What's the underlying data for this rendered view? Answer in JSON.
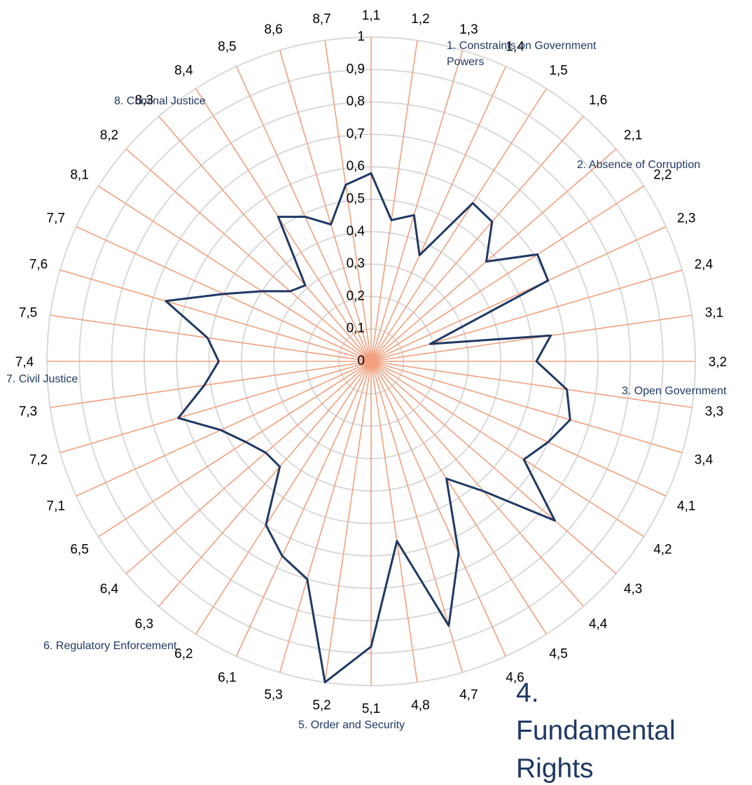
{
  "chart_data": {
    "type": "radar",
    "grid": true,
    "rlim": [
      0,
      1
    ],
    "r_ticks": [
      "0",
      "0,1",
      "0,2",
      "0,3",
      "0,4",
      "0,5",
      "0,6",
      "0,7",
      "0,8",
      "0,9",
      "1"
    ],
    "categories": [
      "1,1",
      "1,2",
      "1,3",
      "1,4",
      "1,5",
      "1,6",
      "2,1",
      "2,2",
      "2,3",
      "2,4",
      "3,1",
      "3,2",
      "3,3",
      "3,4",
      "4,1",
      "4,2",
      "4,3",
      "4,4",
      "4,5",
      "4,6",
      "4,7",
      "4,8",
      "5,1",
      "5,2",
      "5,3",
      "6,1",
      "6,2",
      "6,3",
      "6,4",
      "6,5",
      "7,1",
      "7,2",
      "7,3",
      "7,4",
      "7,5",
      "7,6",
      "7,7",
      "8,1",
      "8,2",
      "8,3",
      "8,4",
      "8,5",
      "8,6",
      "8,7"
    ],
    "series": [
      {
        "values": [
          0.58,
          0.44,
          0.47,
          0.36,
          0.58,
          0.57,
          0.47,
          0.61,
          0.6,
          0.19,
          0.56,
          0.51,
          0.61,
          0.64,
          0.6,
          0.56,
          0.75,
          0.53,
          0.43,
          0.65,
          0.85,
          0.56,
          0.88,
          1.0,
          0.7,
          0.66,
          0.6,
          0.43,
          0.43,
          0.46,
          0.51,
          0.62,
          0.52,
          0.47,
          0.51,
          0.66,
          0.5,
          0.4,
          0.33,
          0.31,
          0.53,
          0.49,
          0.44,
          0.55
        ],
        "color": "#1f3864"
      }
    ],
    "pillars": [
      {
        "label": "1. Constraints on Government Powers"
      },
      {
        "label": "2. Absence of Corruption"
      },
      {
        "label": "3. Open Government"
      },
      {
        "label": "4. Fundamental Rights"
      },
      {
        "label": "5. Order and Security"
      },
      {
        "label": "6. Regulatory Enforcement"
      },
      {
        "label": "7. Civil Justice"
      },
      {
        "label": "8. Criminal Justice"
      }
    ],
    "colors": {
      "spoke": "#f2a07e",
      "ring": "#d9d9d9",
      "line": "#1f3864",
      "label": "#1f3864"
    }
  }
}
